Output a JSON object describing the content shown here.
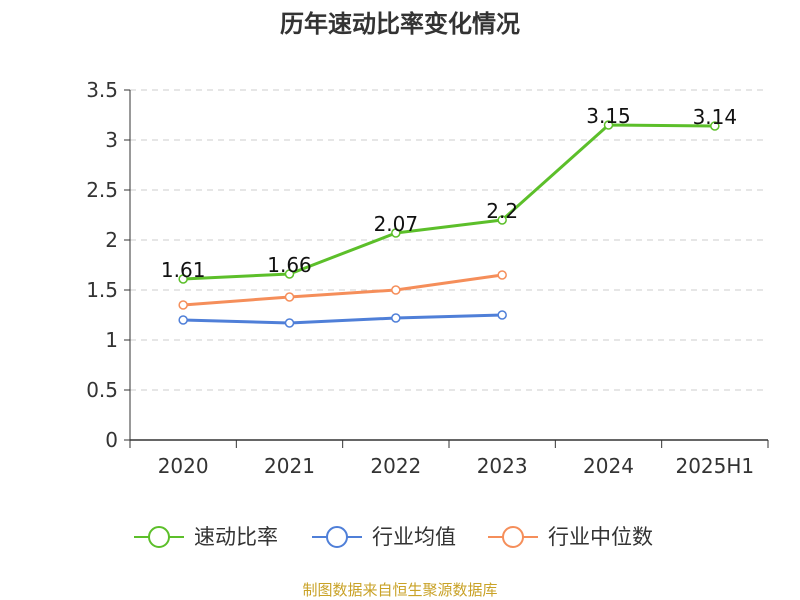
{
  "chart_data": {
    "type": "line",
    "title": "历年速动比率变化情况",
    "categories": [
      "2020",
      "2021",
      "2022",
      "2023",
      "2024",
      "2025H1"
    ],
    "series": [
      {
        "name": "速动比率",
        "color": "#5cbf2a",
        "values": [
          1.61,
          1.66,
          2.07,
          2.2,
          3.15,
          3.14
        ],
        "labels": [
          "1.61",
          "1.66",
          "2.07",
          "2.2",
          "3.15",
          "3.14"
        ]
      },
      {
        "name": "行业均值",
        "color": "#4f7fd8",
        "values": [
          1.2,
          1.17,
          1.22,
          1.25,
          null,
          null
        ]
      },
      {
        "name": "行业中位数",
        "color": "#f58e5a",
        "values": [
          1.35,
          1.43,
          1.5,
          1.65,
          null,
          null
        ]
      }
    ],
    "y_ticks": [
      "0",
      "0.5",
      "1",
      "1.5",
      "2",
      "2.5",
      "3",
      "3.5"
    ],
    "ylim": [
      0,
      3.5
    ],
    "grid": true,
    "legend_position": "bottom",
    "source": "制图数据来自恒生聚源数据库"
  }
}
